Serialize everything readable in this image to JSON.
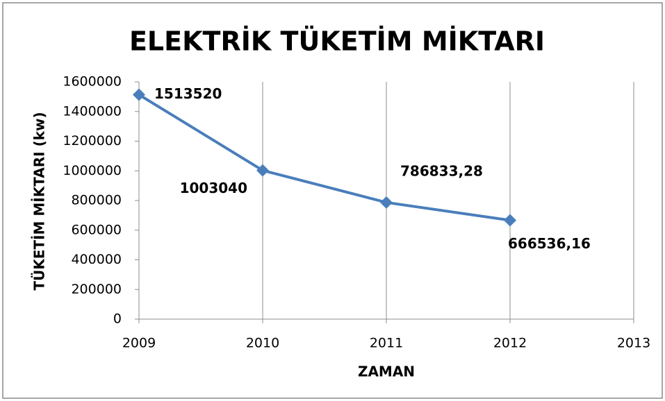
{
  "chart_data": {
    "type": "line",
    "title": "ELEKTRİK TÜKETİM MİKTARI",
    "x_label": "ZAMAN",
    "y_label": "TÜKETİM MİKTARI (kw)",
    "x": [
      2009,
      2010,
      2011,
      2012
    ],
    "series": [
      {
        "name": "TÜKETİM MİKTARI",
        "color": "#4a7ebb",
        "values": [
          1513520,
          1003040,
          786833.28,
          666536.16
        ],
        "value_labels": [
          "1513520",
          "1003040",
          "786833,28",
          "666536,16"
        ]
      }
    ],
    "xlim": [
      2009,
      2013
    ],
    "xticks": [
      2009,
      2010,
      2011,
      2012,
      2013
    ],
    "ylim": [
      0,
      1600000
    ],
    "yticks": [
      0,
      200000,
      400000,
      600000,
      800000,
      1000000,
      1200000,
      1400000,
      1600000
    ],
    "grid": "x",
    "legend": false
  }
}
